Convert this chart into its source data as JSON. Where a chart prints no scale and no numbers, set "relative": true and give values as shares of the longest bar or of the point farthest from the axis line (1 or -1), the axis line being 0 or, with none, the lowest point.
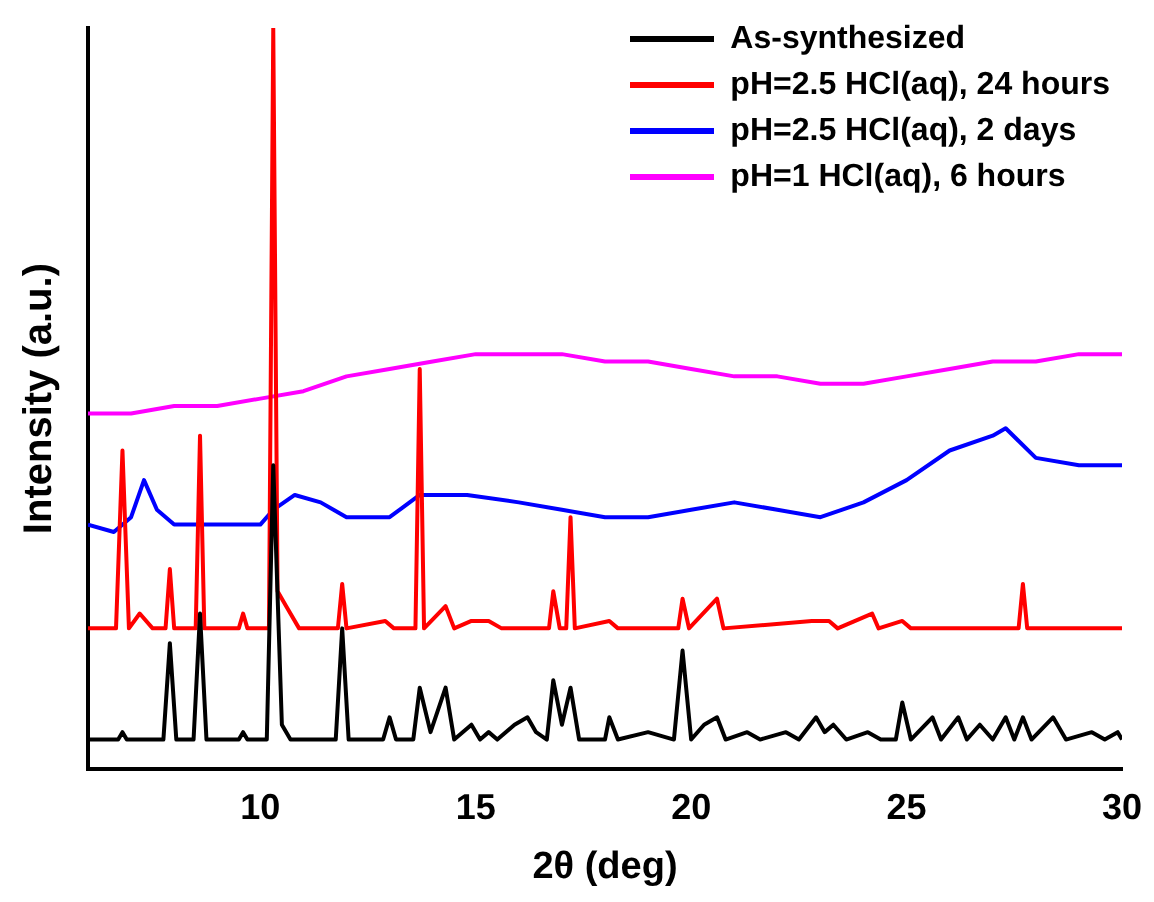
{
  "chart_data": {
    "type": "line",
    "xlabel": "2θ (deg)",
    "ylabel": "Intensity (a.u.)",
    "relative": true,
    "xlim": [
      6,
      30
    ],
    "xticks": [
      10,
      15,
      20,
      25,
      30
    ],
    "legend": "top right",
    "marker": "none",
    "series": [
      {
        "name": "As-synthesized",
        "color": "#000000",
        "x": [
          6.0,
          6.7,
          6.8,
          6.9,
          7.75,
          7.9,
          8.05,
          8.45,
          8.6,
          8.75,
          9.5,
          9.6,
          9.7,
          10.15,
          10.3,
          10.5,
          10.7,
          11.75,
          11.9,
          12.05,
          12.85,
          13.0,
          13.15,
          13.55,
          13.7,
          13.95,
          14.3,
          14.5,
          14.9,
          15.1,
          15.3,
          15.5,
          15.9,
          16.2,
          16.4,
          16.65,
          16.8,
          17.0,
          17.2,
          17.4,
          18.0,
          18.1,
          18.3,
          19.0,
          19.6,
          19.8,
          20.0,
          20.3,
          20.6,
          20.8,
          21.3,
          21.6,
          22.2,
          22.5,
          22.9,
          23.1,
          23.3,
          23.6,
          24.1,
          24.4,
          24.75,
          24.9,
          25.1,
          25.6,
          25.8,
          26.2,
          26.4,
          26.7,
          27.0,
          27.3,
          27.5,
          27.7,
          27.9,
          28.4,
          28.7,
          29.3,
          29.6,
          29.9,
          30.0
        ],
        "values": [
          0.04,
          0.04,
          0.05,
          0.04,
          0.04,
          0.17,
          0.04,
          0.04,
          0.21,
          0.04,
          0.04,
          0.05,
          0.04,
          0.04,
          0.41,
          0.06,
          0.04,
          0.04,
          0.19,
          0.04,
          0.04,
          0.07,
          0.04,
          0.04,
          0.11,
          0.05,
          0.11,
          0.04,
          0.06,
          0.04,
          0.05,
          0.04,
          0.06,
          0.07,
          0.05,
          0.04,
          0.12,
          0.06,
          0.11,
          0.04,
          0.04,
          0.07,
          0.04,
          0.05,
          0.04,
          0.16,
          0.04,
          0.06,
          0.07,
          0.04,
          0.05,
          0.04,
          0.05,
          0.04,
          0.07,
          0.05,
          0.06,
          0.04,
          0.05,
          0.04,
          0.04,
          0.09,
          0.04,
          0.07,
          0.04,
          0.07,
          0.04,
          0.06,
          0.04,
          0.07,
          0.04,
          0.07,
          0.04,
          0.07,
          0.04,
          0.05,
          0.04,
          0.05,
          0.04
        ]
      },
      {
        "name": "pH=2.5 HCl(aq), 24 hours",
        "color": "#ff0000",
        "x": [
          6.0,
          6.65,
          6.8,
          6.95,
          7.2,
          7.5,
          7.8,
          7.9,
          8.0,
          8.5,
          8.6,
          8.7,
          9.5,
          9.6,
          9.7,
          10.2,
          10.3,
          10.4,
          10.6,
          10.9,
          11.8,
          11.9,
          12.0,
          12.9,
          13.1,
          13.6,
          13.7,
          13.8,
          14.3,
          14.5,
          14.9,
          15.3,
          15.6,
          16.7,
          16.8,
          16.95,
          17.1,
          17.2,
          17.3,
          18.1,
          18.3,
          19.7,
          19.8,
          19.95,
          20.6,
          20.75,
          22.8,
          23.2,
          23.4,
          24.2,
          24.35,
          24.9,
          25.1,
          27.6,
          27.7,
          27.8,
          28.3,
          30.0
        ],
        "values": [
          0.19,
          0.19,
          0.43,
          0.19,
          0.21,
          0.19,
          0.19,
          0.27,
          0.19,
          0.19,
          0.45,
          0.19,
          0.19,
          0.21,
          0.19,
          0.19,
          1.0,
          0.24,
          0.22,
          0.19,
          0.19,
          0.25,
          0.19,
          0.2,
          0.19,
          0.19,
          0.54,
          0.19,
          0.22,
          0.19,
          0.2,
          0.2,
          0.19,
          0.19,
          0.24,
          0.19,
          0.19,
          0.34,
          0.19,
          0.2,
          0.19,
          0.19,
          0.23,
          0.19,
          0.23,
          0.19,
          0.2,
          0.2,
          0.19,
          0.21,
          0.19,
          0.2,
          0.19,
          0.19,
          0.25,
          0.19,
          0.19,
          0.19
        ]
      },
      {
        "name": "pH=2.5 HCl(aq), 2 days",
        "color": "#0000ff",
        "x": [
          6,
          6.6,
          7.0,
          7.3,
          7.6,
          8.0,
          9,
          10,
          10.3,
          10.8,
          11.4,
          12,
          13,
          13.7,
          14.8,
          16,
          17,
          18,
          19,
          20,
          21,
          22,
          23,
          24,
          25,
          26,
          27,
          27.3,
          28,
          29,
          30
        ],
        "values": [
          0.33,
          0.32,
          0.34,
          0.39,
          0.35,
          0.33,
          0.33,
          0.33,
          0.35,
          0.37,
          0.36,
          0.34,
          0.34,
          0.37,
          0.37,
          0.36,
          0.35,
          0.34,
          0.34,
          0.35,
          0.36,
          0.35,
          0.34,
          0.36,
          0.39,
          0.43,
          0.45,
          0.46,
          0.42,
          0.41,
          0.41
        ]
      },
      {
        "name": "pH=1 HCl(aq), 6 hours",
        "color": "#ff00ff",
        "x": [
          6,
          7,
          8,
          9,
          10,
          11,
          12,
          13,
          14,
          15,
          16,
          17,
          18,
          19,
          20,
          21,
          22,
          23,
          24,
          25,
          26,
          27,
          28,
          29,
          30
        ],
        "values": [
          0.48,
          0.48,
          0.49,
          0.49,
          0.5,
          0.51,
          0.53,
          0.54,
          0.55,
          0.56,
          0.56,
          0.56,
          0.55,
          0.55,
          0.54,
          0.53,
          0.53,
          0.52,
          0.52,
          0.53,
          0.54,
          0.55,
          0.55,
          0.56,
          0.56
        ]
      }
    ]
  }
}
